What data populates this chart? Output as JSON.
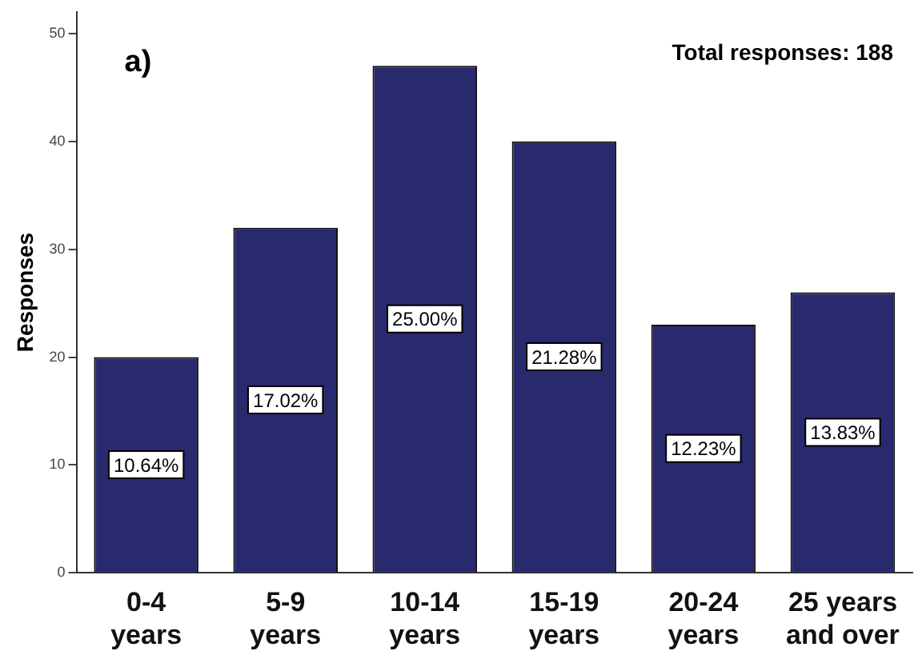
{
  "chart_data": {
    "type": "bar",
    "title": "a)",
    "ylabel": "Responses",
    "categories": [
      "0-4 years",
      "5-9 years",
      "10-14 years",
      "15-19 years",
      "20-24 years",
      "25 years and over"
    ],
    "values": [
      20,
      32,
      47,
      40,
      23,
      26
    ],
    "color": "#29296e",
    "ylim": [
      0,
      52
    ],
    "yticks": [
      0,
      10,
      20,
      30,
      40,
      50
    ],
    "grid": false,
    "legend": false,
    "annotations": [
      "Total responses: 188",
      "10.64%",
      "17.02%",
      "25.00%",
      "21.28%",
      "12.23%",
      "13.83%"
    ]
  }
}
